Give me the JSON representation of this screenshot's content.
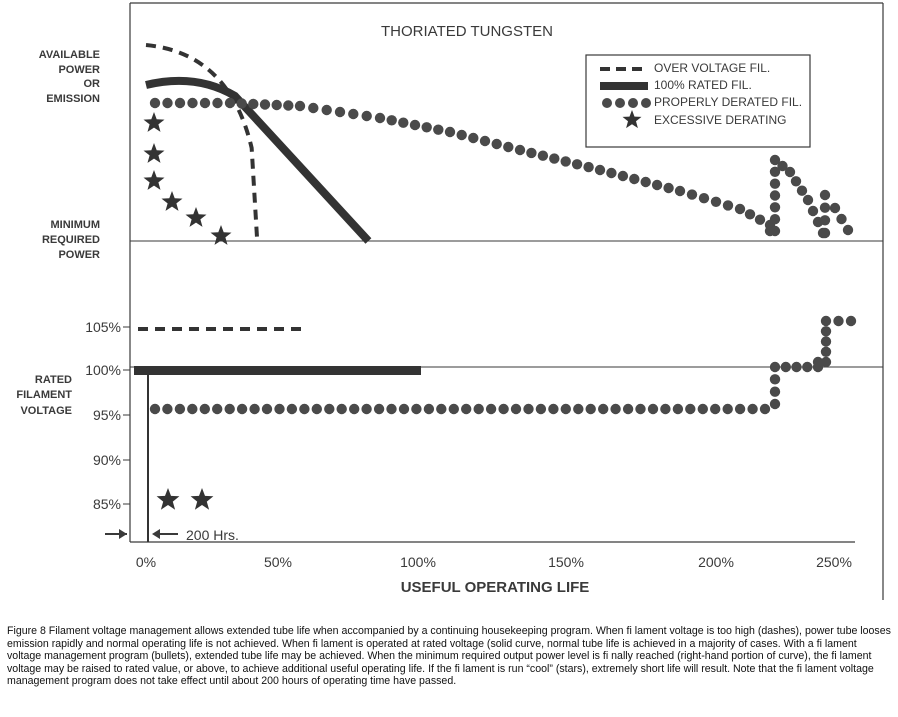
{
  "chart_data": [
    {
      "type": "line",
      "title": "THORIATED TUNGSTEN",
      "ylabel_top": "AVAILABLE POWER OR EMISSION",
      "ylabel_bottom": "MINIMUM REQUIRED POWER",
      "legend_position": "top-right",
      "series": [
        {
          "name": "OVER VOLTAGE FIL.",
          "style": "dashed",
          "points": [
            [
              0,
              1.0
            ],
            [
              10,
              0.97
            ],
            [
              20,
              0.9
            ],
            [
              30,
              0.74
            ],
            [
              35,
              0.55
            ],
            [
              38,
              0.35
            ],
            [
              40,
              0.0
            ]
          ]
        },
        {
          "name": "100% RATED FIL.",
          "style": "solid",
          "points": [
            [
              0,
              0.84
            ],
            [
              10,
              0.84
            ],
            [
              20,
              0.82
            ],
            [
              30,
              0.75
            ],
            [
              40,
              0.62
            ],
            [
              50,
              0.5
            ],
            [
              60,
              0.36
            ],
            [
              70,
              0.2
            ],
            [
              80,
              0.0
            ]
          ]
        },
        {
          "name": "PROPERLY DERATED FIL.",
          "style": "dotted",
          "points": [
            [
              5,
              0.7
            ],
            [
              30,
              0.7
            ],
            [
              60,
              0.68
            ],
            [
              100,
              0.6
            ],
            [
              150,
              0.44
            ],
            [
              200,
              0.28
            ],
            [
              226,
              0.18
            ],
            [
              228,
              0.0
            ],
            [
              228,
              0.42
            ],
            [
              232,
              0.37
            ],
            [
              238,
              0.28
            ],
            [
              244,
              0.14
            ],
            [
              247,
              0.0
            ],
            [
              248,
              0.25
            ],
            [
              250,
              0.2
            ],
            [
              254,
              0.08
            ],
            [
              256,
              0.0
            ]
          ]
        },
        {
          "name": "EXCESSIVE DERATING",
          "style": "stars",
          "points": [
            [
              4,
              0.6
            ],
            [
              4,
              0.44
            ],
            [
              4,
              0.3
            ],
            [
              9,
              0.19
            ],
            [
              18,
              0.1
            ],
            [
              28,
              0.0
            ]
          ]
        }
      ],
      "legend": [
        "OVER VOLTAGE FIL.",
        "100% RATED FIL.",
        "PROPERLY DERATED FIL.",
        "EXCESSIVE DERATING"
      ]
    },
    {
      "type": "line",
      "xlabel": "USEFUL OPERATING LIFE",
      "ylabel": "RATED FILAMENT VOLTAGE",
      "x_ticks": [
        "0%",
        "50%",
        "100%",
        "150%",
        "200%",
        "250%"
      ],
      "x_tick_values": [
        0,
        50,
        100,
        150,
        200,
        250
      ],
      "y_ticks": [
        "105%",
        "100%",
        "95%",
        "90%",
        "85%"
      ],
      "y_tick_values": [
        105,
        100,
        95,
        90,
        85
      ],
      "xlim": [
        0,
        255
      ],
      "ylim": [
        82,
        108
      ],
      "annotation": "200 Hrs.",
      "series": [
        {
          "name": "OVER VOLTAGE FIL.",
          "style": "dashed",
          "points": [
            [
              0,
              104.5
            ],
            [
              58,
              104.5
            ]
          ]
        },
        {
          "name": "100% RATED FIL.",
          "style": "solid",
          "points": [
            [
              0,
              100
            ],
            [
              100,
              100
            ]
          ]
        },
        {
          "name": "PROPERLY DERATED FIL.",
          "style": "dotted",
          "points": [
            [
              2,
              100
            ],
            [
              2,
              95.8
            ],
            [
              225,
              95.8
            ],
            [
              226,
              96
            ],
            [
              226,
              100.6
            ],
            [
              240,
              100.6
            ],
            [
              240,
              105.5
            ],
            [
              255,
              105.5
            ]
          ]
        },
        {
          "name": "EXCESSIVE DERATING",
          "style": "stars",
          "points": [
            [
              8,
              85.5
            ],
            [
              20,
              85.5
            ]
          ]
        }
      ]
    }
  ],
  "caption": "Figure 8 Filament voltage management allows extended tube life when accompanied by a continuing housekeeping program. When fi lament voltage is too high (dashes), power tube looses emission rapidly and normal operating life is not achieved. When fi lament is operated at rated voltage (solid curve, normal tube life is achieved in a majority of cases. With a fi lament voltage management program (bullets), extended tube life may be achieved. When the minimum required output power level is fi nally reached (right-hand portion of curve), the fi lament voltage may be raised to rated value, or above, to achieve additional useful operating life. If the fi lament is run “cool” (stars), extremely short life will result. Note that the fi lament voltage management program does not take effect until about 200 hours of operating time have passed.",
  "colors": {
    "ink": "#3a3a3a",
    "heavy": "#333333",
    "dot": "#4a4a4a"
  }
}
